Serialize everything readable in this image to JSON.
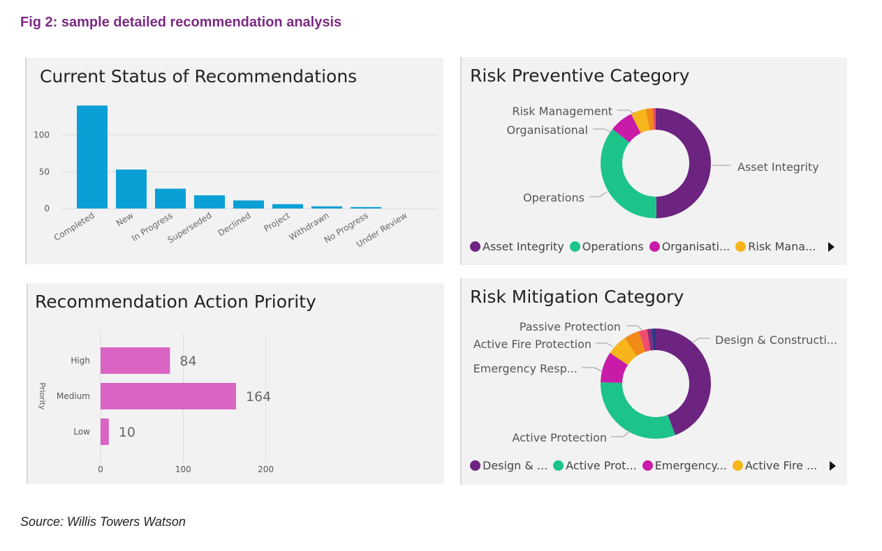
{
  "figure": {
    "caption": "Fig 2: sample detailed recommendation analysis",
    "source": "Source: Willis Towers Watson"
  },
  "chart_data": [
    {
      "type": "bar",
      "title": "Current Status of Recommendations",
      "categories": [
        "Completed",
        "New",
        "In Progress",
        "Superseded",
        "Declined",
        "Project",
        "Withdrawn",
        "No Progress",
        "Under Review"
      ],
      "values": [
        140,
        53,
        27,
        18,
        11,
        6,
        3,
        2,
        0
      ],
      "yticks": [
        "0",
        "50",
        "100"
      ],
      "ylim": [
        0,
        140
      ],
      "grid": true,
      "color": "#0aa0d6"
    },
    {
      "type": "pie",
      "title": "Risk Preventive Category",
      "slices": [
        {
          "label": "Asset Integrity",
          "value": 50,
          "color": "#6d2380"
        },
        {
          "label": "Operations",
          "value": 36,
          "color": "#1dc48a"
        },
        {
          "label": "Organisational",
          "value": 7,
          "color": "#c81ba8"
        },
        {
          "label": "Risk Management",
          "value": 4.5,
          "color": "#f6b51a"
        },
        {
          "label": "",
          "value": 2,
          "color": "#f08b18"
        },
        {
          "label": "",
          "value": 0.9,
          "color": "#ee4d6e"
        }
      ],
      "legend": [
        "Asset Integrity",
        "Operations",
        "Organisati...",
        "Risk Mana..."
      ]
    },
    {
      "type": "bar",
      "orientation": "horizontal",
      "title": "Recommendation Action Priority",
      "ylabel": "Priority",
      "categories": [
        "High",
        "Medium",
        "Low"
      ],
      "values": [
        84,
        164,
        10
      ],
      "xticks": [
        "0",
        "100",
        "200"
      ],
      "xlim": [
        0,
        200
      ],
      "color": "#d964c4"
    },
    {
      "type": "pie",
      "title": "Risk Mitigation Category",
      "slices": [
        {
          "label": "Design & Constructi...",
          "value": 44,
          "color": "#6d2380"
        },
        {
          "label": "Active Protection",
          "value": 31,
          "color": "#1dc48a"
        },
        {
          "label": "Emergency Resp...",
          "value": 9,
          "color": "#c81ba8"
        },
        {
          "label": "Active Fire Protection",
          "value": 6,
          "color": "#f6b51a"
        },
        {
          "label": "",
          "value": 4.5,
          "color": "#f08b18"
        },
        {
          "label": "Passive Protection",
          "value": 2.5,
          "color": "#ee4d6e"
        },
        {
          "label": "",
          "value": 1.3,
          "color": "#8a2c7e"
        },
        {
          "label": "",
          "value": 1.2,
          "color": "#2c3a86"
        }
      ],
      "legend": [
        "Design & ...",
        "Active Prot...",
        "Emergency...",
        "Active Fire ..."
      ]
    }
  ]
}
